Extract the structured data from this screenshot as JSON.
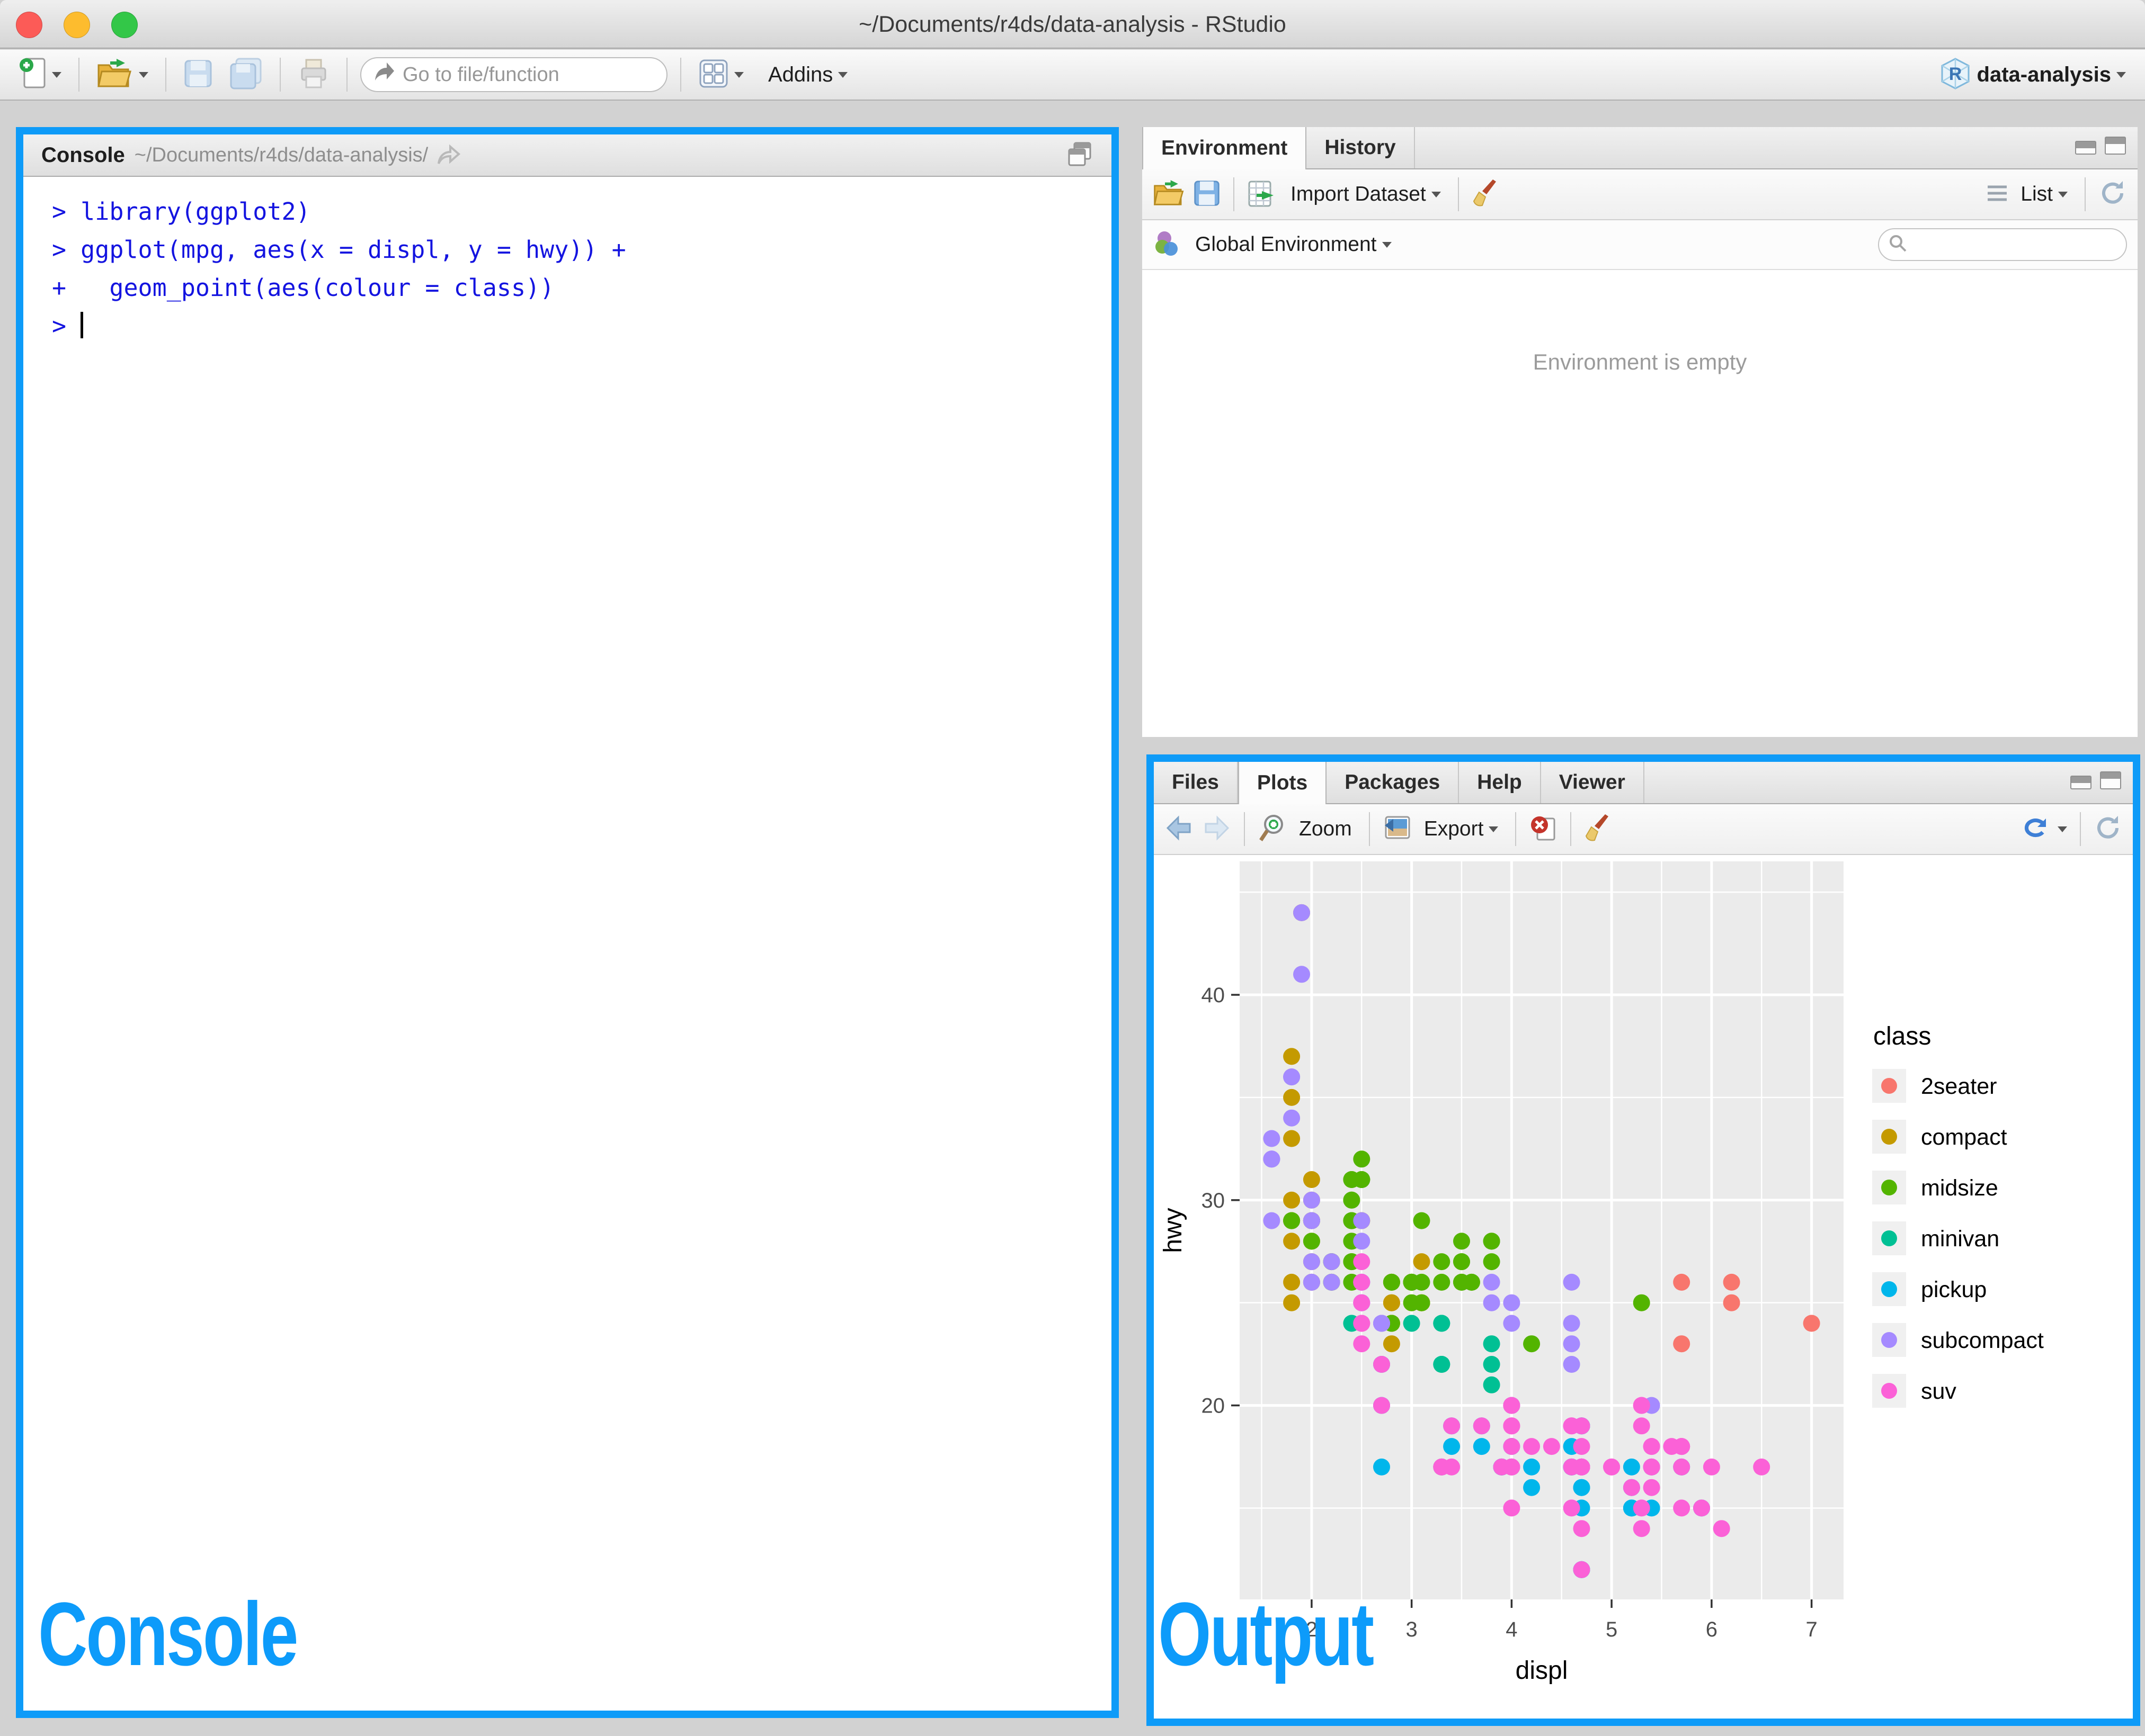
{
  "window": {
    "title": "~/Documents/r4ds/data-analysis - RStudio"
  },
  "toolbar": {
    "goto_placeholder": "Go to file/function",
    "addins_label": "Addins",
    "project_label": "data-analysis"
  },
  "console_pane": {
    "tab_label": "Console",
    "path": "~/Documents/r4ds/data-analysis/",
    "overlay_label": "Console",
    "lines": [
      {
        "prompt": ">",
        "code": " library(ggplot2)"
      },
      {
        "prompt": ">",
        "code": " ggplot(mpg, aes(x = displ, y = hwy)) +"
      },
      {
        "prompt": "+",
        "code": "   geom_point(aes(colour = class))"
      },
      {
        "prompt": ">",
        "code": " ",
        "cursor": true
      }
    ]
  },
  "environment_pane": {
    "tabs": [
      {
        "label": "Environment",
        "active": true
      },
      {
        "label": "History",
        "active": false
      }
    ],
    "import_dataset_label": "Import Dataset",
    "list_label": "List",
    "scope_label": "Global Environment",
    "empty_text": "Environment is empty"
  },
  "plots_pane": {
    "tabs": [
      {
        "label": "Files",
        "active": false
      },
      {
        "label": "Plots",
        "active": true
      },
      {
        "label": "Packages",
        "active": false
      },
      {
        "label": "Help",
        "active": false
      },
      {
        "label": "Viewer",
        "active": false
      }
    ],
    "zoom_label": "Zoom",
    "export_label": "Export",
    "overlay_label": "Output"
  },
  "chart_data": {
    "type": "scatter",
    "title": "",
    "xlabel": "displ",
    "ylabel": "hwy",
    "legend_title": "class",
    "legend_position": "right",
    "grid": true,
    "panel_color": "#EBEBEB",
    "xlim": [
      1.28,
      7.32
    ],
    "ylim": [
      10.55,
      46.5
    ],
    "x_ticks": [
      2,
      3,
      4,
      5,
      6,
      7
    ],
    "y_ticks": [
      20,
      30,
      40
    ],
    "x_minor": [
      1.5,
      2.5,
      3.5,
      4.5,
      5.5,
      6.5
    ],
    "y_minor": [
      15,
      25,
      35,
      45
    ],
    "series": [
      {
        "name": "2seater",
        "color": "#F8766D",
        "points": [
          [
            5.7,
            26
          ],
          [
            5.7,
            23
          ],
          [
            6.2,
            26
          ],
          [
            6.2,
            25
          ],
          [
            7.0,
            24
          ]
        ]
      },
      {
        "name": "compact",
        "color": "#C49A00",
        "points": [
          [
            1.8,
            29
          ],
          [
            1.8,
            29
          ],
          [
            2.0,
            31
          ],
          [
            2.0,
            30
          ],
          [
            2.8,
            26
          ],
          [
            2.8,
            26
          ],
          [
            3.1,
            27
          ],
          [
            1.8,
            26
          ],
          [
            1.8,
            25
          ],
          [
            2.0,
            28
          ],
          [
            2.0,
            27
          ],
          [
            2.8,
            25
          ],
          [
            2.8,
            25
          ],
          [
            3.1,
            25
          ],
          [
            3.1,
            25
          ],
          [
            1.8,
            28
          ],
          [
            1.8,
            30
          ],
          [
            1.8,
            33
          ],
          [
            1.8,
            35
          ],
          [
            1.8,
            37
          ],
          [
            2.0,
            29
          ],
          [
            2.0,
            26
          ],
          [
            2.0,
            29
          ],
          [
            2.0,
            29
          ],
          [
            2.8,
            24
          ],
          [
            1.9,
            44
          ],
          [
            2.0,
            29
          ],
          [
            2.0,
            26
          ],
          [
            2.0,
            29
          ],
          [
            2.0,
            29
          ],
          [
            2.5,
            29
          ],
          [
            2.5,
            29
          ],
          [
            2.8,
            23
          ],
          [
            2.8,
            24
          ]
        ]
      },
      {
        "name": "midsize",
        "color": "#53B400",
        "points": [
          [
            2.8,
            24
          ],
          [
            3.1,
            25
          ],
          [
            4.2,
            23
          ],
          [
            2.4,
            27
          ],
          [
            2.4,
            30
          ],
          [
            3.1,
            29
          ],
          [
            3.5,
            27
          ],
          [
            3.6,
            26
          ],
          [
            2.4,
            26
          ],
          [
            2.4,
            27
          ],
          [
            2.4,
            30
          ],
          [
            2.5,
            31
          ],
          [
            2.5,
            31
          ],
          [
            3.3,
            26
          ],
          [
            2.4,
            29
          ],
          [
            2.4,
            29
          ],
          [
            2.5,
            31
          ],
          [
            2.5,
            32
          ],
          [
            3.5,
            26
          ],
          [
            3.5,
            27
          ],
          [
            3.0,
            26
          ],
          [
            3.0,
            25
          ],
          [
            3.5,
            26
          ],
          [
            3.1,
            26
          ],
          [
            3.8,
            28
          ],
          [
            3.8,
            27
          ],
          [
            3.8,
            28
          ],
          [
            5.3,
            25
          ],
          [
            2.2,
            26
          ],
          [
            2.2,
            27
          ],
          [
            2.4,
            28
          ],
          [
            2.4,
            31
          ],
          [
            3.0,
            26
          ],
          [
            3.0,
            26
          ],
          [
            3.5,
            28
          ],
          [
            2.2,
            26
          ],
          [
            2.2,
            27
          ],
          [
            2.4,
            29
          ],
          [
            2.4,
            31
          ],
          [
            3.0,
            26
          ],
          [
            3.0,
            26
          ],
          [
            3.3,
            27
          ],
          [
            1.8,
            29
          ],
          [
            1.8,
            29
          ],
          [
            2.0,
            28
          ],
          [
            2.0,
            29
          ],
          [
            2.8,
            26
          ],
          [
            2.8,
            26
          ],
          [
            3.6,
            26
          ]
        ]
      },
      {
        "name": "minivan",
        "color": "#00C094",
        "points": [
          [
            2.4,
            24
          ],
          [
            3.0,
            24
          ],
          [
            3.3,
            22
          ],
          [
            3.3,
            22
          ],
          [
            3.3,
            24
          ],
          [
            3.3,
            24
          ],
          [
            3.3,
            17
          ],
          [
            3.8,
            22
          ],
          [
            3.8,
            21
          ],
          [
            3.8,
            23
          ],
          [
            4.0,
            17
          ]
        ]
      },
      {
        "name": "pickup",
        "color": "#00B6EB",
        "points": [
          [
            3.7,
            19
          ],
          [
            3.7,
            18
          ],
          [
            3.9,
            17
          ],
          [
            3.9,
            17
          ],
          [
            4.7,
            19
          ],
          [
            4.7,
            19
          ],
          [
            4.7,
            12
          ],
          [
            5.2,
            17
          ],
          [
            5.2,
            15
          ],
          [
            4.7,
            16
          ],
          [
            4.7,
            17
          ],
          [
            4.7,
            15
          ],
          [
            4.7,
            17
          ],
          [
            4.7,
            16
          ],
          [
            4.7,
            12
          ],
          [
            5.2,
            15
          ],
          [
            5.2,
            16
          ],
          [
            5.7,
            17
          ],
          [
            5.9,
            15
          ],
          [
            4.2,
            17
          ],
          [
            4.2,
            16
          ],
          [
            4.6,
            18
          ],
          [
            4.6,
            17
          ],
          [
            4.6,
            17
          ],
          [
            5.4,
            15
          ],
          [
            5.4,
            17
          ],
          [
            2.7,
            20
          ],
          [
            2.7,
            22
          ],
          [
            2.7,
            17
          ],
          [
            3.4,
            19
          ],
          [
            3.4,
            18
          ],
          [
            4.0,
            18
          ],
          [
            4.0,
            20
          ]
        ]
      },
      {
        "name": "subcompact",
        "color": "#A58AFF",
        "points": [
          [
            1.6,
            33
          ],
          [
            1.6,
            32
          ],
          [
            1.6,
            32
          ],
          [
            1.6,
            29
          ],
          [
            1.6,
            32
          ],
          [
            1.8,
            34
          ],
          [
            1.8,
            36
          ],
          [
            1.8,
            36
          ],
          [
            2.0,
            29
          ],
          [
            3.8,
            26
          ],
          [
            3.8,
            25
          ],
          [
            4.0,
            24
          ],
          [
            4.0,
            25
          ],
          [
            4.6,
            23
          ],
          [
            4.6,
            24
          ],
          [
            4.6,
            26
          ],
          [
            4.6,
            22
          ],
          [
            5.4,
            20
          ],
          [
            1.9,
            44
          ],
          [
            1.9,
            41
          ],
          [
            2.0,
            29
          ],
          [
            2.0,
            26
          ],
          [
            2.5,
            28
          ],
          [
            2.5,
            29
          ],
          [
            2.0,
            26
          ],
          [
            2.0,
            27
          ],
          [
            2.0,
            30
          ],
          [
            2.0,
            29
          ],
          [
            2.7,
            24
          ],
          [
            2.7,
            24
          ],
          [
            2.7,
            24
          ],
          [
            2.2,
            26
          ],
          [
            2.2,
            27
          ],
          [
            2.5,
            25
          ],
          [
            2.5,
            25
          ],
          [
            2.5,
            26
          ],
          [
            2.5,
            25
          ],
          [
            2.5,
            26
          ],
          [
            2.5,
            26
          ]
        ]
      },
      {
        "name": "suv",
        "color": "#FB61D7",
        "points": [
          [
            5.3,
            20
          ],
          [
            5.3,
            15
          ],
          [
            5.3,
            20
          ],
          [
            5.7,
            17
          ],
          [
            6.0,
            17
          ],
          [
            5.3,
            14
          ],
          [
            5.3,
            19
          ],
          [
            5.7,
            15
          ],
          [
            6.5,
            17
          ],
          [
            3.9,
            17
          ],
          [
            4.7,
            17
          ],
          [
            4.7,
            17
          ],
          [
            4.7,
            18
          ],
          [
            5.2,
            16
          ],
          [
            5.7,
            18
          ],
          [
            5.9,
            15
          ],
          [
            4.6,
            17
          ],
          [
            5.4,
            17
          ],
          [
            5.4,
            18
          ],
          [
            4.0,
            17
          ],
          [
            4.0,
            17
          ],
          [
            4.0,
            19
          ],
          [
            4.0,
            19
          ],
          [
            4.6,
            19
          ],
          [
            5.0,
            17
          ],
          [
            3.7,
            19
          ],
          [
            4.0,
            20
          ],
          [
            4.7,
            17
          ],
          [
            4.7,
            19
          ],
          [
            4.7,
            12
          ],
          [
            4.7,
            14
          ],
          [
            5.7,
            18
          ],
          [
            6.1,
            14
          ],
          [
            4.0,
            15
          ],
          [
            4.2,
            18
          ],
          [
            4.4,
            18
          ],
          [
            4.6,
            15
          ],
          [
            5.4,
            17
          ],
          [
            5.4,
            16
          ],
          [
            5.4,
            18
          ],
          [
            4.0,
            17
          ],
          [
            4.0,
            19
          ],
          [
            4.6,
            19
          ],
          [
            5.0,
            17
          ],
          [
            3.3,
            17
          ],
          [
            3.3,
            17
          ],
          [
            4.0,
            18
          ],
          [
            5.6,
            18
          ],
          [
            2.5,
            26
          ],
          [
            2.5,
            24
          ],
          [
            2.5,
            27
          ],
          [
            2.5,
            25
          ],
          [
            2.5,
            23
          ],
          [
            2.5,
            24
          ],
          [
            2.7,
            20
          ],
          [
            2.7,
            22
          ],
          [
            3.4,
            17
          ],
          [
            3.4,
            19
          ],
          [
            4.0,
            20
          ],
          [
            4.7,
            17
          ],
          [
            4.7,
            17
          ],
          [
            5.7,
            18
          ]
        ]
      }
    ],
    "accent_colors": {
      "highlight_border": "#0E9BF8",
      "console_code": "#1414E0"
    }
  }
}
